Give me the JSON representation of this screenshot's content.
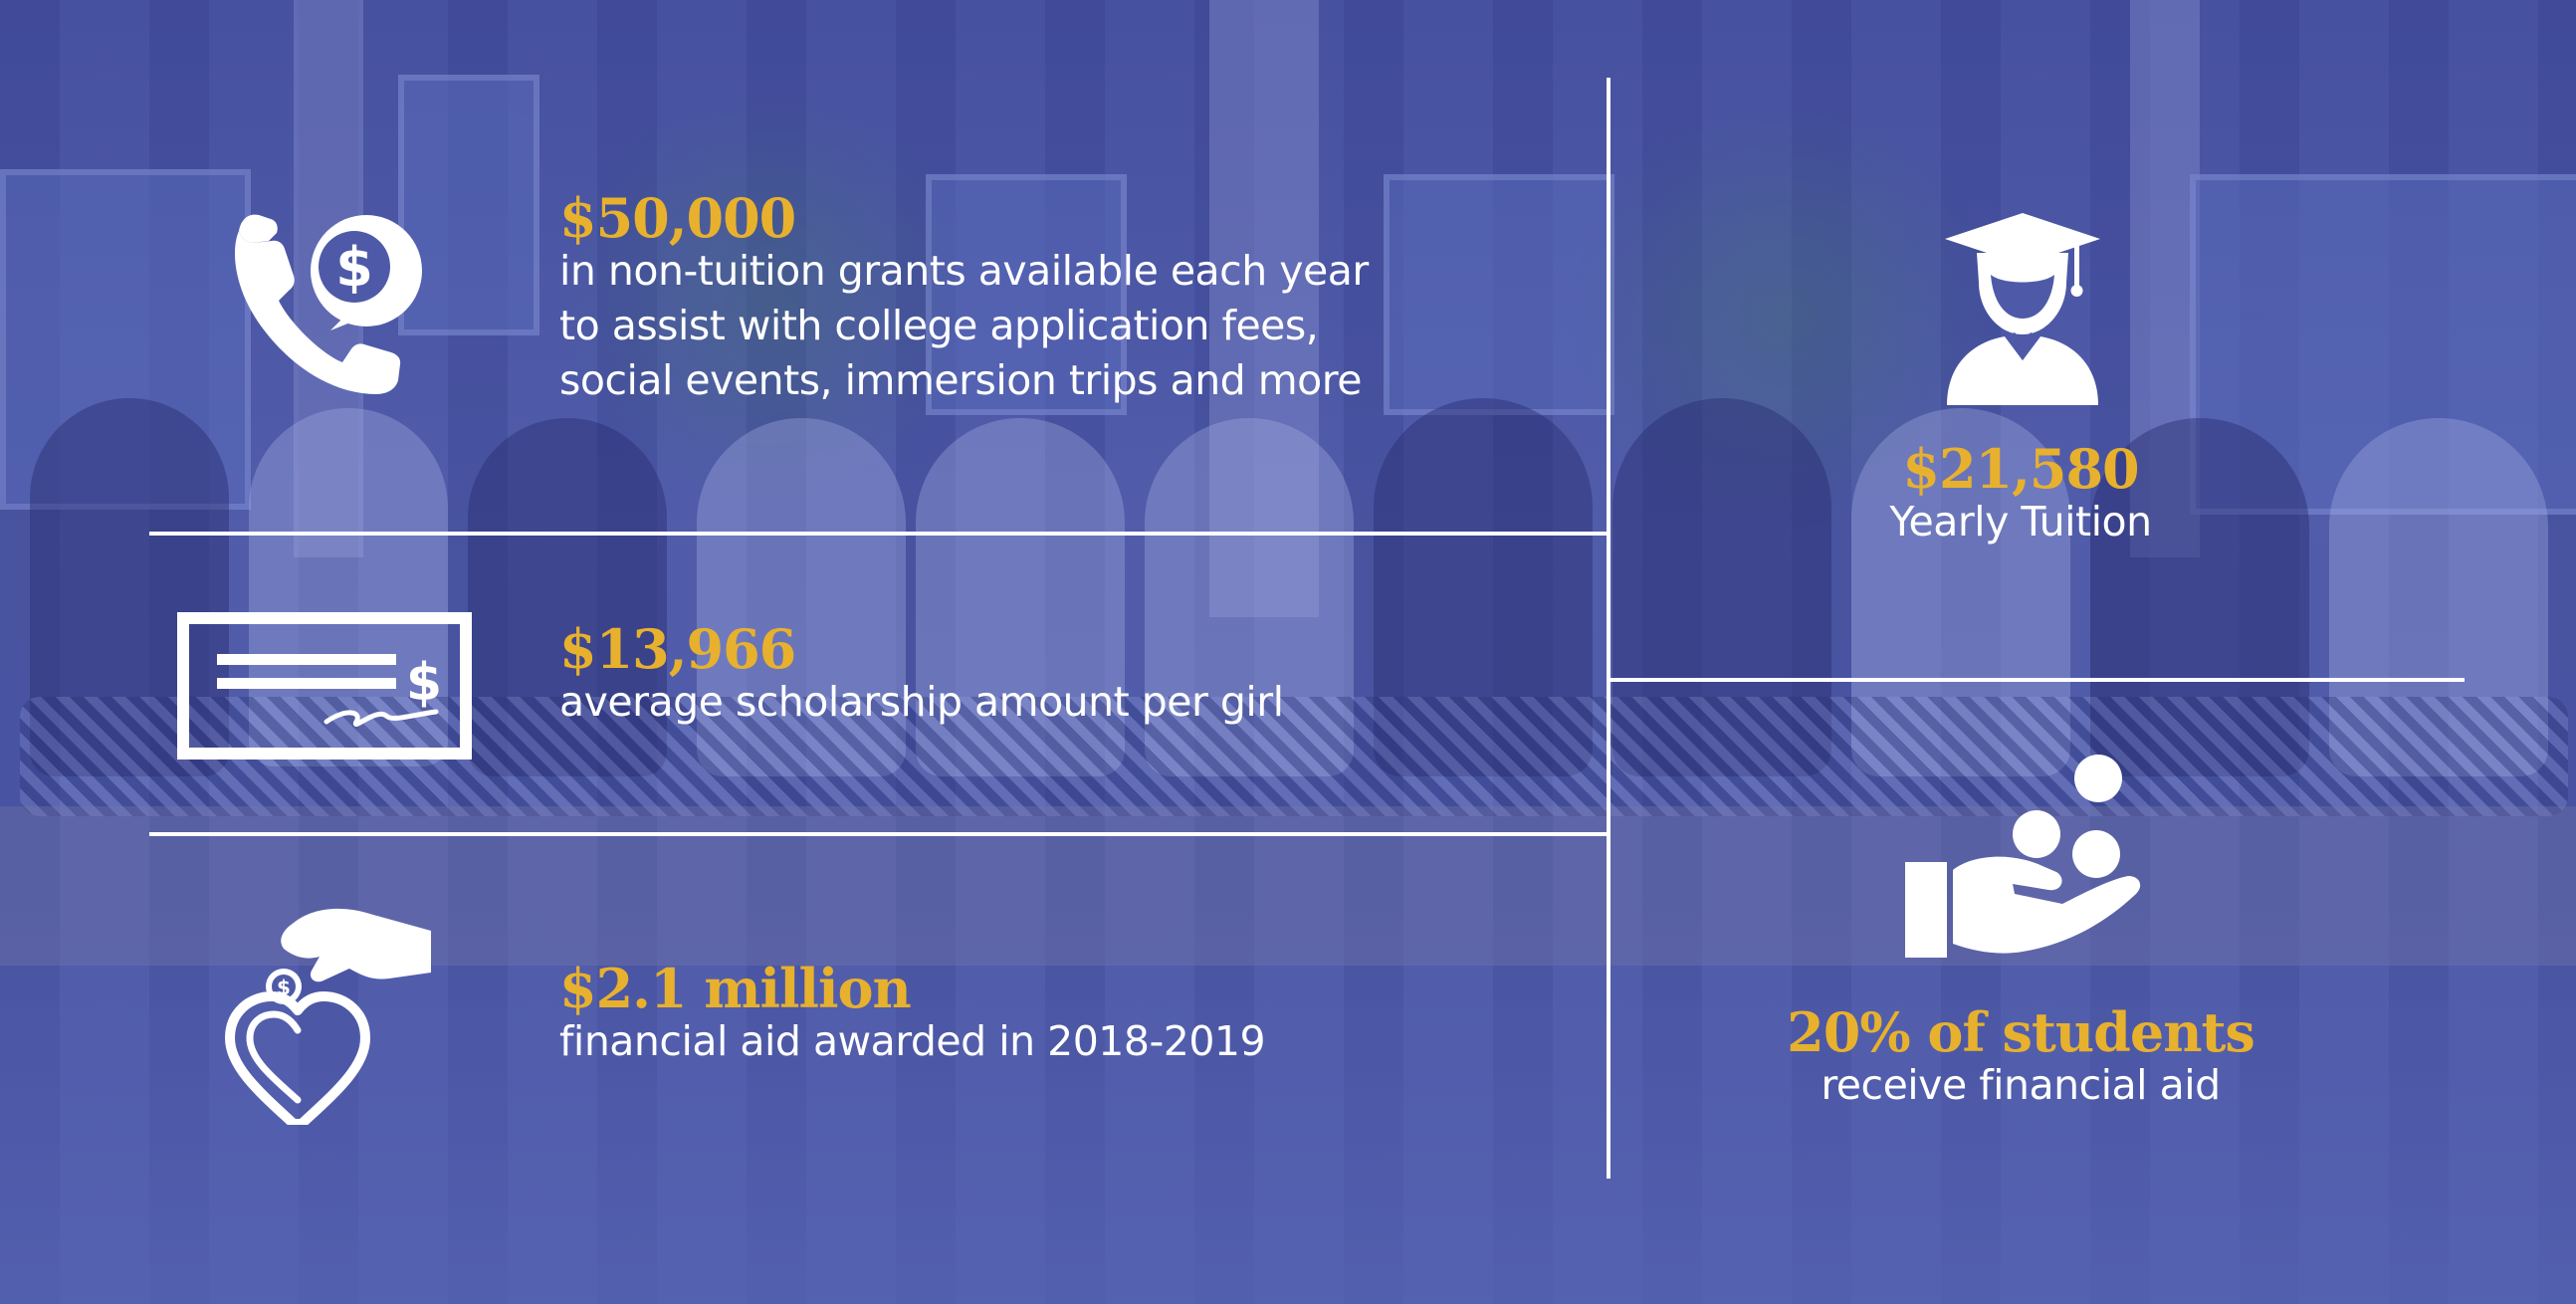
{
  "stats": [
    {
      "amount": "$50,000",
      "lines": [
        "in non-tuition grants available each year",
        "to assist with college application fees,",
        "social events, immersion trips and more"
      ],
      "icon": "phone-dollar-icon"
    },
    {
      "amount": "$13,966",
      "lines": [
        "average scholarship amount per girl"
      ],
      "icon": "check-icon"
    },
    {
      "amount": "$2.1 million",
      "lines": [
        "financial aid awarded in 2018-2019"
      ],
      "icon": "heart-coin-icon"
    },
    {
      "amount": "$21,580",
      "lines": [
        "Yearly Tuition"
      ],
      "icon": "graduate-icon"
    },
    {
      "amount": "20% of students",
      "lines": [
        "receive financial aid"
      ],
      "icon": "hand-coins-icon"
    }
  ],
  "colors": {
    "background": "#4e5aa8",
    "accent": "#e7b12e",
    "text": "#ffffff"
  }
}
